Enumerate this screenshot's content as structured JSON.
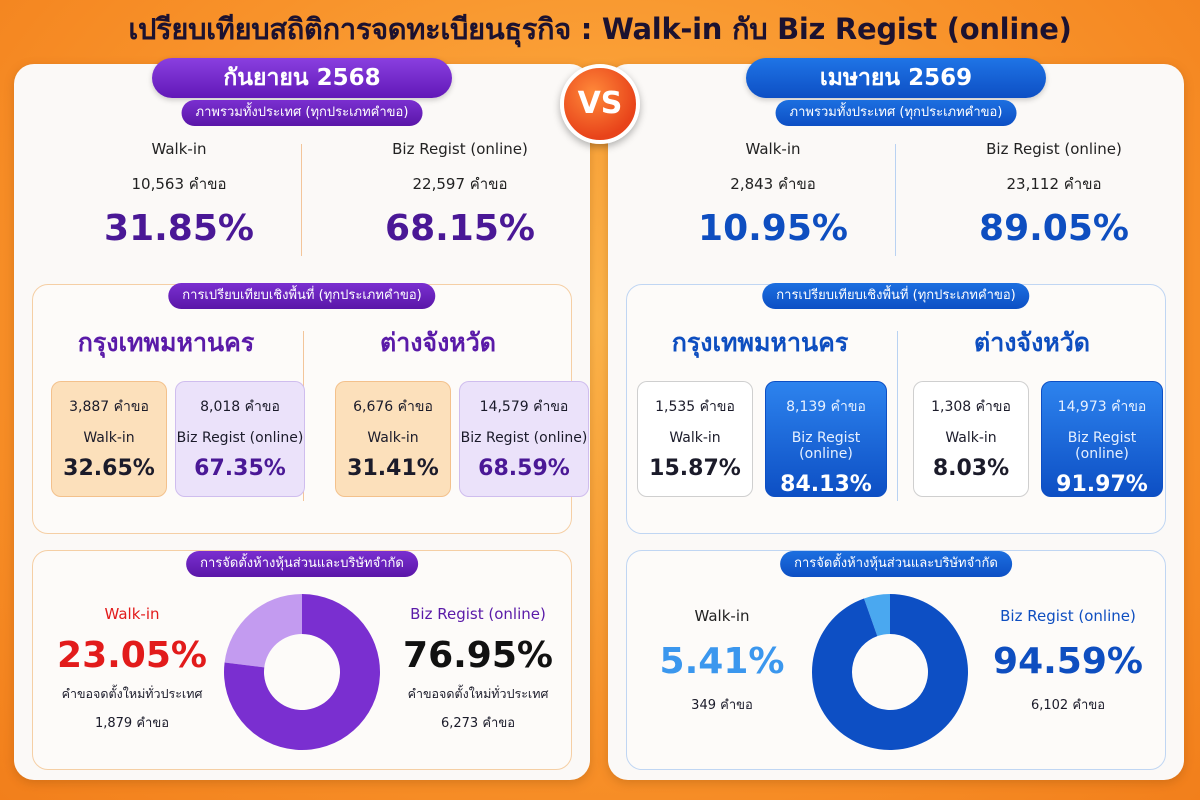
{
  "title": "เปรียบเทียบสถิติการจดทะเบียนธุรกิจ : Walk-in กับ Biz Regist (online)",
  "vs_label": "VS",
  "colors": {
    "left_accent": "#5a1aa8",
    "right_accent": "#0e4ec0",
    "left_donut_online": "#7a2fd0",
    "left_donut_walkin": "#c39bf0",
    "right_donut_online": "#0d4fc4",
    "right_donut_walkin": "#4aa8f0",
    "left_walkin_text": "#e21b1b",
    "right_walkin_text": "#3b97ee"
  },
  "left": {
    "period": "กันยายน 2568",
    "overview_heading": "ภาพรวมทั้งประเทศ (ทุกประเภทคำขอ)",
    "overview": {
      "walkin": {
        "label": "Walk-in",
        "count": "10,563 คำขอ",
        "percent": "31.85%"
      },
      "online": {
        "label": "Biz Regist (online)",
        "count": "22,597 คำขอ",
        "percent": "68.15%"
      }
    },
    "region_heading": "การเปรียบเทียบเชิงพื้นที่ (ทุกประเภทคำขอ)",
    "regions": [
      {
        "name": "กรุงเทพมหานคร",
        "walkin": {
          "count": "3,887 คำขอ",
          "label": "Walk-in",
          "percent": "32.65%"
        },
        "online": {
          "count": "8,018 คำขอ",
          "label": "Biz Regist (online)",
          "percent": "67.35%"
        }
      },
      {
        "name": "ต่างจังหวัด",
        "walkin": {
          "count": "6,676 คำขอ",
          "label": "Walk-in",
          "percent": "31.41%"
        },
        "online": {
          "count": "14,579 คำขอ",
          "label": "Biz Regist (online)",
          "percent": "68.59%"
        }
      }
    ],
    "setup_heading": "การจัดตั้งห้างหุ้นส่วนและบริษัทจำกัด",
    "setup": {
      "walkin": {
        "label": "Walk-in",
        "percent": "23.05%",
        "sub": "คำขอจดตั้งใหม่ทั่วประเทศ",
        "count": "1,879 คำขอ"
      },
      "online": {
        "label": "Biz Regist (online)",
        "percent": "76.95%",
        "sub": "คำขอจดตั้งใหม่ทั่วประเทศ",
        "count": "6,273 คำขอ"
      }
    }
  },
  "right": {
    "period": "เมษายน 2569",
    "overview_heading": "ภาพรวมทั้งประเทศ (ทุกประเภทคำขอ)",
    "overview": {
      "walkin": {
        "label": "Walk-in",
        "count": "2,843 คำขอ",
        "percent": "10.95%"
      },
      "online": {
        "label": "Biz Regist (online)",
        "count": "23,112 คำขอ",
        "percent": "89.05%"
      }
    },
    "region_heading": "การเปรียบเทียบเชิงพื้นที่ (ทุกประเภทคำขอ)",
    "regions": [
      {
        "name": "กรุงเทพมหานคร",
        "walkin": {
          "count": "1,535 คำขอ",
          "label": "Walk-in",
          "percent": "15.87%"
        },
        "online": {
          "count": "8,139 คำขอ",
          "label": "Biz Regist (online)",
          "percent": "84.13%"
        }
      },
      {
        "name": "ต่างจังหวัด",
        "walkin": {
          "count": "1,308 คำขอ",
          "label": "Walk-in",
          "percent": "8.03%"
        },
        "online": {
          "count": "14,973 คำขอ",
          "label": "Biz Regist (online)",
          "percent": "91.97%"
        }
      }
    ],
    "setup_heading": "การจัดตั้งห้างหุ้นส่วนและบริษัทจำกัด",
    "setup": {
      "walkin": {
        "label": "Walk-in",
        "percent": "5.41%",
        "count": "349 คำขอ"
      },
      "online": {
        "label": "Biz Regist (online)",
        "percent": "94.59%",
        "count": "6,102 คำขอ"
      }
    }
  },
  "chart_data": [
    {
      "type": "pie",
      "categories": [
        "Walk-in",
        "Biz Regist (online)"
      ],
      "values": [
        23.05,
        76.95
      ]
    },
    {
      "type": "pie",
      "categories": [
        "Walk-in",
        "Biz Regist (online)"
      ],
      "values": [
        5.41,
        94.59
      ]
    }
  ]
}
